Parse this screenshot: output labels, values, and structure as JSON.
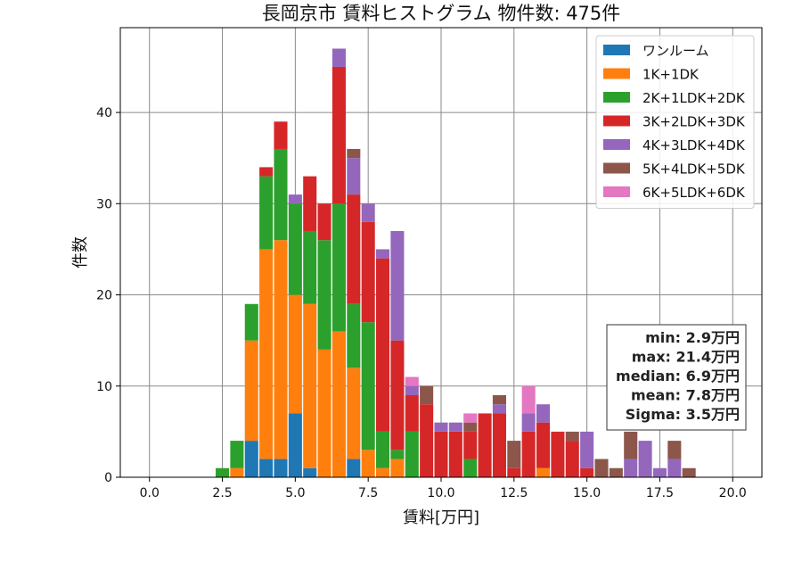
{
  "chart_data": {
    "type": "bar",
    "stacked": true,
    "title": "長岡京市 賃料ヒストグラム 物件数: 475件",
    "xlabel": "賃料[万円]",
    "ylabel": "件数",
    "xlim": [
      -1.0,
      21.0
    ],
    "ylim": [
      0,
      49.3
    ],
    "bin_width": 0.5,
    "x": [
      2.5,
      3.0,
      3.5,
      4.0,
      4.5,
      5.0,
      5.5,
      6.0,
      6.5,
      7.0,
      7.5,
      8.0,
      8.5,
      9.0,
      9.5,
      10.0,
      10.5,
      11.0,
      11.5,
      12.0,
      12.5,
      13.0,
      13.5,
      14.0,
      14.5,
      15.0,
      15.5,
      16.0,
      16.5,
      17.0,
      17.5,
      18.0,
      18.5
    ],
    "xticks": [
      "0.0",
      "2.5",
      "5.0",
      "7.5",
      "10.0",
      "12.5",
      "15.0",
      "17.5",
      "20.0"
    ],
    "yticks": [
      "0",
      "10",
      "20",
      "30",
      "40"
    ],
    "grid": true,
    "legend_position": "top-right",
    "series": [
      {
        "name": "ワンルーム",
        "color": "#1f77b4",
        "values": [
          0,
          0,
          4,
          2,
          2,
          7,
          1,
          0,
          0,
          2,
          0,
          0,
          0,
          0,
          0,
          0,
          0,
          0,
          0,
          0,
          0,
          0,
          0,
          0,
          0,
          0,
          0,
          0,
          0,
          0,
          0,
          0,
          0
        ]
      },
      {
        "name": "1K+1DK",
        "color": "#ff7f0e",
        "values": [
          0,
          1,
          11,
          23,
          24,
          13,
          18,
          14,
          16,
          10,
          3,
          1,
          2,
          0,
          0,
          0,
          0,
          0,
          0,
          0,
          0,
          0,
          1,
          0,
          0,
          0,
          0,
          0,
          0,
          0,
          0,
          0,
          0
        ]
      },
      {
        "name": "2K+1LDK+2DK",
        "color": "#2ca02c",
        "values": [
          1,
          3,
          4,
          8,
          10,
          10,
          8,
          12,
          14,
          7,
          14,
          4,
          1,
          5,
          0,
          0,
          0,
          2,
          0,
          0,
          0,
          0,
          0,
          0,
          0,
          0,
          0,
          0,
          0,
          0,
          0,
          0,
          0
        ]
      },
      {
        "name": "3K+2LDK+3DK",
        "color": "#d62728",
        "values": [
          0,
          0,
          0,
          1,
          3,
          0,
          6,
          4,
          15,
          12,
          11,
          19,
          12,
          4,
          8,
          5,
          5,
          3,
          7,
          7,
          1,
          5,
          5,
          5,
          4,
          1,
          0,
          0,
          0,
          0,
          0,
          0,
          0
        ]
      },
      {
        "name": "4K+3LDK+4DK",
        "color": "#9467bd",
        "values": [
          0,
          0,
          0,
          0,
          0,
          1,
          0,
          0,
          2,
          4,
          2,
          1,
          12,
          1,
          0,
          1,
          1,
          0,
          0,
          1,
          0,
          2,
          2,
          0,
          0,
          4,
          0,
          0,
          2,
          4,
          1,
          2,
          0
        ]
      },
      {
        "name": "5K+4LDK+5DK",
        "color": "#8c564b",
        "values": [
          0,
          0,
          0,
          0,
          0,
          0,
          0,
          0,
          0,
          1,
          0,
          0,
          0,
          0,
          2,
          0,
          0,
          1,
          0,
          1,
          3,
          0,
          0,
          0,
          1,
          0,
          2,
          1,
          3,
          0,
          0,
          2,
          1
        ]
      },
      {
        "name": "6K+5LDK+6DK",
        "color": "#e377c2",
        "values": [
          0,
          0,
          0,
          0,
          0,
          0,
          0,
          0,
          0,
          0,
          0,
          0,
          0,
          1,
          0,
          0,
          0,
          1,
          0,
          0,
          0,
          3,
          0,
          0,
          0,
          0,
          0,
          0,
          0,
          0,
          0,
          0,
          0
        ]
      }
    ],
    "stats": [
      "min: 2.9万円",
      "max: 21.4万円",
      "median: 6.9万円",
      "mean: 7.8万円",
      "Sigma: 3.5万円"
    ]
  }
}
